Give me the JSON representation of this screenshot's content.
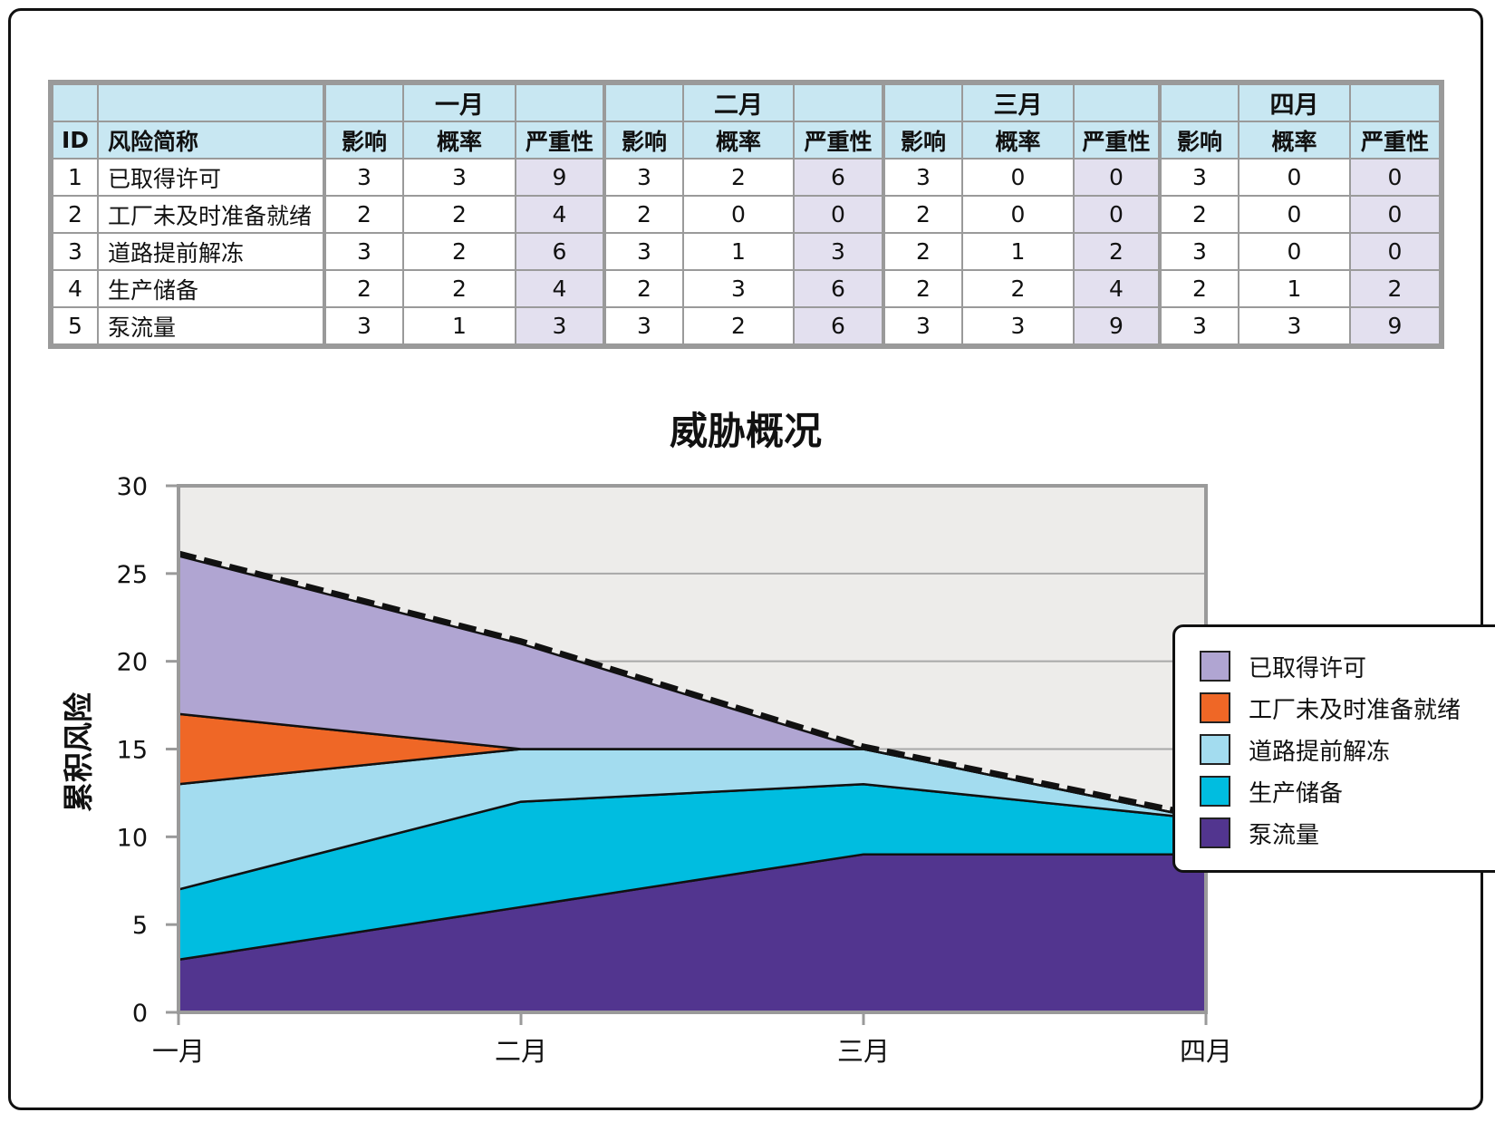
{
  "table": {
    "header_months": [
      "一月",
      "二月",
      "三月",
      "四月"
    ],
    "col_id": "ID",
    "col_name": "风险简称",
    "sub_headers": [
      "影响",
      "概率",
      "严重性"
    ],
    "rows": [
      {
        "id": "1",
        "name": "已取得许可",
        "cells": [
          "3",
          "3",
          "9",
          "3",
          "2",
          "6",
          "3",
          "0",
          "0",
          "3",
          "0",
          "0"
        ]
      },
      {
        "id": "2",
        "name": "工厂未及时准备就绪",
        "cells": [
          "2",
          "2",
          "4",
          "2",
          "0",
          "0",
          "2",
          "0",
          "0",
          "2",
          "0",
          "0"
        ]
      },
      {
        "id": "3",
        "name": "道路提前解冻",
        "cells": [
          "3",
          "2",
          "6",
          "3",
          "1",
          "3",
          "2",
          "1",
          "2",
          "3",
          "0",
          "0"
        ]
      },
      {
        "id": "4",
        "name": "生产储备",
        "cells": [
          "2",
          "2",
          "4",
          "2",
          "3",
          "6",
          "2",
          "2",
          "4",
          "2",
          "1",
          "2"
        ]
      },
      {
        "id": "5",
        "name": "泵流量",
        "cells": [
          "3",
          "1",
          "3",
          "3",
          "2",
          "6",
          "3",
          "3",
          "9",
          "3",
          "3",
          "9"
        ]
      }
    ]
  },
  "chart_data": {
    "type": "area",
    "stacked": true,
    "title": "威胁概况",
    "xlabel": "",
    "ylabel": "累积风险",
    "categories": [
      "一月",
      "二月",
      "三月",
      "四月"
    ],
    "ylim": [
      0,
      30
    ],
    "yticks": [
      0,
      5,
      10,
      15,
      20,
      25,
      30
    ],
    "grid": true,
    "legend_position": "right",
    "total_line": {
      "style": "dashed",
      "color": "#111111"
    },
    "series": [
      {
        "name": "泵流量",
        "values": [
          3,
          6,
          9,
          9
        ],
        "color": "#52358f"
      },
      {
        "name": "生产储备",
        "values": [
          4,
          6,
          4,
          2
        ],
        "color": "#00bde0"
      },
      {
        "name": "道路提前解冻",
        "values": [
          6,
          3,
          2,
          0
        ],
        "color": "#a3dcef"
      },
      {
        "name": "工厂未及时准备就绪",
        "values": [
          4,
          0,
          0,
          0
        ],
        "color": "#ef6726"
      },
      {
        "name": "已取得许可",
        "values": [
          9,
          6,
          0,
          0
        ],
        "color": "#b0a5d2"
      }
    ],
    "plot_background": "#edecea",
    "legend_order": [
      "已取得许可",
      "工厂未及时准备就绪",
      "道路提前解冻",
      "生产储备",
      "泵流量"
    ]
  }
}
